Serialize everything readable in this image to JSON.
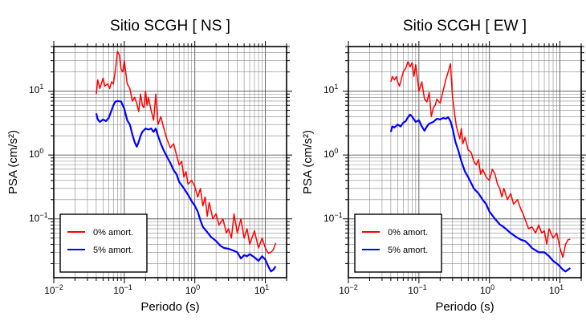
{
  "chart_data": [
    {
      "type": "line",
      "title": "Sitio SCGH [ NS ]",
      "xlabel": "Periodo (s)",
      "ylabel": "PSA (cm/s²)",
      "xscale": "log",
      "yscale": "log",
      "xlim": [
        0.01,
        20
      ],
      "ylim": [
        0.012,
        50
      ],
      "grid": true,
      "legend_position": "bottom-left",
      "xticks": [
        {
          "base": "10",
          "exp": "−2"
        },
        {
          "base": "10",
          "exp": "−1"
        },
        {
          "base": "10",
          "exp": "0"
        },
        {
          "base": "10",
          "exp": "1"
        }
      ],
      "yticks": [
        {
          "base": "10",
          "exp": "−1"
        },
        {
          "base": "10",
          "exp": "0"
        },
        {
          "base": "10",
          "exp": "1"
        }
      ],
      "series": [
        {
          "name": "0% amort.",
          "color": "#ff0000",
          "points": [
            [
              0.04,
              9
            ],
            [
              0.042,
              15
            ],
            [
              0.045,
              11
            ],
            [
              0.05,
              16
            ],
            [
              0.053,
              12
            ],
            [
              0.058,
              13
            ],
            [
              0.062,
              11
            ],
            [
              0.066,
              14
            ],
            [
              0.07,
              13
            ],
            [
              0.075,
              22
            ],
            [
              0.08,
              42
            ],
            [
              0.085,
              37
            ],
            [
              0.09,
              22
            ],
            [
              0.095,
              20
            ],
            [
              0.1,
              30
            ],
            [
              0.11,
              13
            ],
            [
              0.12,
              11
            ],
            [
              0.13,
              7
            ],
            [
              0.14,
              8
            ],
            [
              0.15,
              6.5
            ],
            [
              0.16,
              4.8
            ],
            [
              0.17,
              9
            ],
            [
              0.18,
              6
            ],
            [
              0.19,
              5.5
            ],
            [
              0.2,
              10
            ],
            [
              0.21,
              6
            ],
            [
              0.22,
              8
            ],
            [
              0.24,
              5
            ],
            [
              0.26,
              3.5
            ],
            [
              0.28,
              9
            ],
            [
              0.3,
              3
            ],
            [
              0.33,
              4
            ],
            [
              0.36,
              2.7
            ],
            [
              0.4,
              1.8
            ],
            [
              0.45,
              1.3
            ],
            [
              0.5,
              1.5
            ],
            [
              0.55,
              1
            ],
            [
              0.6,
              0.7
            ],
            [
              0.65,
              0.8
            ],
            [
              0.7,
              0.45
            ],
            [
              0.75,
              0.55
            ],
            [
              0.8,
              0.35
            ],
            [
              0.9,
              0.4
            ],
            [
              1,
              0.32
            ],
            [
              1.1,
              0.22
            ],
            [
              1.2,
              0.3
            ],
            [
              1.3,
              0.16
            ],
            [
              1.4,
              0.22
            ],
            [
              1.5,
              0.11
            ],
            [
              1.6,
              0.18
            ],
            [
              1.8,
              0.1
            ],
            [
              2,
              0.12
            ],
            [
              2.2,
              0.08
            ],
            [
              2.5,
              0.1
            ],
            [
              2.8,
              0.06
            ],
            [
              3,
              0.07
            ],
            [
              3.3,
              0.05
            ],
            [
              3.6,
              0.12
            ],
            [
              4,
              0.06
            ],
            [
              4.5,
              0.1
            ],
            [
              5,
              0.05
            ],
            [
              5.5,
              0.07
            ],
            [
              6,
              0.04
            ],
            [
              7,
              0.065
            ],
            [
              8,
              0.035
            ],
            [
              9,
              0.05
            ],
            [
              10,
              0.035
            ],
            [
              11,
              0.029
            ],
            [
              12,
              0.03
            ],
            [
              13,
              0.033
            ],
            [
              14,
              0.042
            ]
          ]
        },
        {
          "name": "5% amort.",
          "color": "#0000ff",
          "points": [
            [
              0.04,
              4.5
            ],
            [
              0.042,
              3.6
            ],
            [
              0.045,
              3.3
            ],
            [
              0.05,
              3.6
            ],
            [
              0.055,
              3.4
            ],
            [
              0.06,
              3.8
            ],
            [
              0.065,
              4.8
            ],
            [
              0.07,
              6
            ],
            [
              0.075,
              6.9
            ],
            [
              0.08,
              7
            ],
            [
              0.09,
              6.9
            ],
            [
              0.1,
              5.3
            ],
            [
              0.11,
              3.5
            ],
            [
              0.12,
              3
            ],
            [
              0.13,
              2.1
            ],
            [
              0.14,
              1.6
            ],
            [
              0.15,
              1.35
            ],
            [
              0.16,
              1.6
            ],
            [
              0.17,
              2
            ],
            [
              0.18,
              2.3
            ],
            [
              0.2,
              2.6
            ],
            [
              0.22,
              2.5
            ],
            [
              0.24,
              2.6
            ],
            [
              0.26,
              2.3
            ],
            [
              0.28,
              2.6
            ],
            [
              0.3,
              2
            ],
            [
              0.33,
              1.5
            ],
            [
              0.36,
              1.2
            ],
            [
              0.4,
              0.95
            ],
            [
              0.45,
              0.75
            ],
            [
              0.5,
              0.58
            ],
            [
              0.55,
              0.5
            ],
            [
              0.6,
              0.38
            ],
            [
              0.7,
              0.3
            ],
            [
              0.8,
              0.24
            ],
            [
              0.9,
              0.19
            ],
            [
              1,
              0.16
            ],
            [
              1.1,
              0.13
            ],
            [
              1.2,
              0.095
            ],
            [
              1.3,
              0.075
            ],
            [
              1.5,
              0.062
            ],
            [
              1.7,
              0.052
            ],
            [
              2,
              0.045
            ],
            [
              2.3,
              0.038
            ],
            [
              2.6,
              0.035
            ],
            [
              3,
              0.034
            ],
            [
              3.5,
              0.032
            ],
            [
              4,
              0.03
            ],
            [
              4.5,
              0.024
            ],
            [
              5,
              0.027
            ],
            [
              5.5,
              0.026
            ],
            [
              6,
              0.028
            ],
            [
              7,
              0.025
            ],
            [
              8,
              0.022
            ],
            [
              9,
              0.026
            ],
            [
              10,
              0.023
            ],
            [
              11,
              0.018
            ],
            [
              12,
              0.015
            ],
            [
              13,
              0.016
            ],
            [
              14,
              0.018
            ]
          ]
        }
      ]
    },
    {
      "type": "line",
      "title": "Sitio SCGH [ EW ]",
      "xlabel": "Periodo (s)",
      "ylabel": "PSA (cm/s²)",
      "xscale": "log",
      "yscale": "log",
      "xlim": [
        0.01,
        20
      ],
      "ylim": [
        0.012,
        50
      ],
      "grid": true,
      "legend_position": "bottom-left",
      "xticks": [
        {
          "base": "10",
          "exp": "−2"
        },
        {
          "base": "10",
          "exp": "−1"
        },
        {
          "base": "10",
          "exp": "0"
        },
        {
          "base": "10",
          "exp": "1"
        }
      ],
      "yticks": [
        {
          "base": "10",
          "exp": "−1"
        },
        {
          "base": "10",
          "exp": "0"
        },
        {
          "base": "10",
          "exp": "1"
        }
      ],
      "series": [
        {
          "name": "0% amort.",
          "color": "#ff0000",
          "points": [
            [
              0.04,
              14
            ],
            [
              0.042,
              17
            ],
            [
              0.045,
              15
            ],
            [
              0.048,
              17
            ],
            [
              0.05,
              14
            ],
            [
              0.053,
              12
            ],
            [
              0.056,
              15
            ],
            [
              0.06,
              20
            ],
            [
              0.065,
              23
            ],
            [
              0.07,
              29
            ],
            [
              0.075,
              24
            ],
            [
              0.08,
              28
            ],
            [
              0.085,
              17
            ],
            [
              0.09,
              26
            ],
            [
              0.1,
              10
            ],
            [
              0.11,
              14
            ],
            [
              0.12,
              7.5
            ],
            [
              0.13,
              6.8
            ],
            [
              0.14,
              9.5
            ],
            [
              0.15,
              4
            ],
            [
              0.16,
              5.5
            ],
            [
              0.17,
              6
            ],
            [
              0.18,
              7.5
            ],
            [
              0.2,
              6.5
            ],
            [
              0.22,
              10
            ],
            [
              0.24,
              15
            ],
            [
              0.26,
              20
            ],
            [
              0.28,
              27
            ],
            [
              0.3,
              8
            ],
            [
              0.32,
              4.5
            ],
            [
              0.34,
              2.8
            ],
            [
              0.36,
              2.2
            ],
            [
              0.38,
              1.8
            ],
            [
              0.4,
              2.6
            ],
            [
              0.42,
              1.5
            ],
            [
              0.45,
              1.9
            ],
            [
              0.5,
              1.2
            ],
            [
              0.55,
              1.1
            ],
            [
              0.6,
              0.8
            ],
            [
              0.65,
              0.7
            ],
            [
              0.7,
              0.85
            ],
            [
              0.75,
              0.5
            ],
            [
              0.8,
              0.6
            ],
            [
              0.9,
              0.45
            ],
            [
              1,
              0.4
            ],
            [
              1.1,
              0.6
            ],
            [
              1.2,
              0.5
            ],
            [
              1.3,
              0.35
            ],
            [
              1.4,
              0.3
            ],
            [
              1.5,
              0.22
            ],
            [
              1.6,
              0.3
            ],
            [
              1.8,
              0.2
            ],
            [
              2,
              0.25
            ],
            [
              2.2,
              0.17
            ],
            [
              2.5,
              0.2
            ],
            [
              2.8,
              0.14
            ],
            [
              3,
              0.12
            ],
            [
              3.3,
              0.09
            ],
            [
              3.6,
              0.07
            ],
            [
              4,
              0.075
            ],
            [
              4.5,
              0.06
            ],
            [
              5,
              0.08
            ],
            [
              5.5,
              0.06
            ],
            [
              6,
              0.065
            ],
            [
              6.5,
              0.04
            ],
            [
              7,
              0.07
            ],
            [
              8,
              0.05
            ],
            [
              9,
              0.06
            ],
            [
              10,
              0.035
            ],
            [
              11,
              0.025
            ],
            [
              12,
              0.04
            ],
            [
              13,
              0.047
            ],
            [
              14,
              0.048
            ]
          ]
        },
        {
          "name": "5% amort.",
          "color": "#0000ff",
          "points": [
            [
              0.04,
              2.3
            ],
            [
              0.042,
              2.8
            ],
            [
              0.045,
              2.7
            ],
            [
              0.05,
              3
            ],
            [
              0.055,
              2.8
            ],
            [
              0.06,
              3.2
            ],
            [
              0.065,
              3.4
            ],
            [
              0.07,
              3.9
            ],
            [
              0.075,
              4.3
            ],
            [
              0.08,
              4
            ],
            [
              0.09,
              3.3
            ],
            [
              0.1,
              3.5
            ],
            [
              0.11,
              2.8
            ],
            [
              0.12,
              2.4
            ],
            [
              0.13,
              2.8
            ],
            [
              0.14,
              3.1
            ],
            [
              0.16,
              3.3
            ],
            [
              0.18,
              3.7
            ],
            [
              0.2,
              3.6
            ],
            [
              0.22,
              3.8
            ],
            [
              0.24,
              3.7
            ],
            [
              0.26,
              3.9
            ],
            [
              0.28,
              3.4
            ],
            [
              0.3,
              2.6
            ],
            [
              0.33,
              1.6
            ],
            [
              0.36,
              1.2
            ],
            [
              0.4,
              0.8
            ],
            [
              0.45,
              0.55
            ],
            [
              0.5,
              0.45
            ],
            [
              0.6,
              0.3
            ],
            [
              0.7,
              0.25
            ],
            [
              0.8,
              0.2
            ],
            [
              0.9,
              0.17
            ],
            [
              1,
              0.13
            ],
            [
              1.2,
              0.1
            ],
            [
              1.4,
              0.082
            ],
            [
              1.6,
              0.074
            ],
            [
              2,
              0.06
            ],
            [
              2.4,
              0.052
            ],
            [
              2.8,
              0.047
            ],
            [
              3.2,
              0.045
            ],
            [
              3.6,
              0.04
            ],
            [
              4,
              0.035
            ],
            [
              5,
              0.03
            ],
            [
              6,
              0.03
            ],
            [
              7,
              0.026
            ],
            [
              8,
              0.022
            ],
            [
              9,
              0.02
            ],
            [
              10,
              0.018
            ],
            [
              11,
              0.016
            ],
            [
              12,
              0.015
            ],
            [
              13,
              0.016
            ],
            [
              14,
              0.017
            ]
          ]
        }
      ]
    }
  ]
}
